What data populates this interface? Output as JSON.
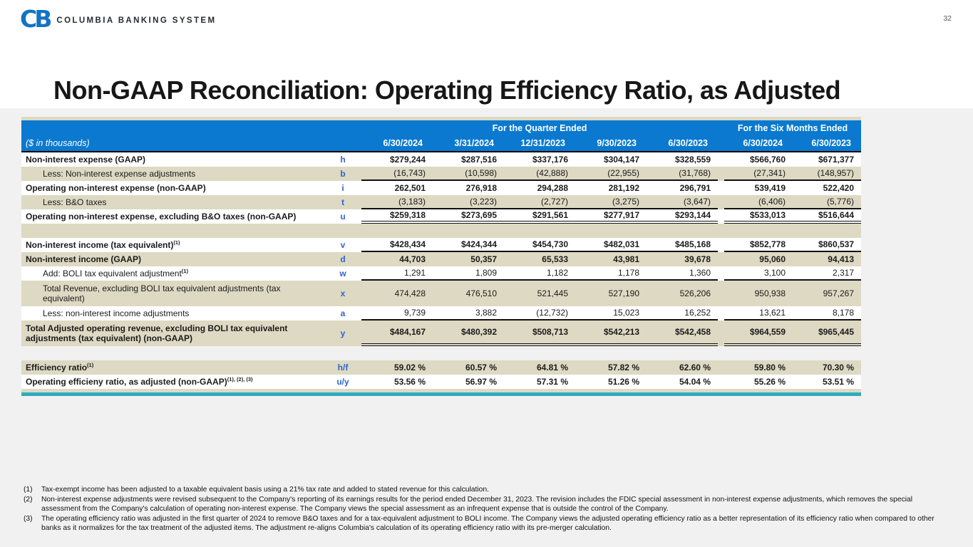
{
  "page_number": "32",
  "brand": {
    "monogram": "CB",
    "name": "COLUMBIA BANKING SYSTEM"
  },
  "title": "Non-GAAP Reconciliation: Operating Efficiency Ratio, as Adjusted",
  "colors": {
    "header_blue": "#0a79cf",
    "row_shade_tan": "#ddd9c3",
    "accent_teal": "#2faabe",
    "code_blue": "#2f65d0",
    "brand_blue": "#1473c2",
    "background_gray": "#f1f1f2"
  },
  "table": {
    "top_left_note": "($ in thousands)",
    "group_headers": [
      {
        "label": "For the Quarter Ended",
        "span": 5
      },
      {
        "label": "For the Six Months Ended",
        "span": 2
      }
    ],
    "columns": [
      "6/30/2024",
      "3/31/2024",
      "12/31/2023",
      "9/30/2023",
      "6/30/2023",
      "6/30/2024",
      "6/30/2023"
    ],
    "rows": [
      {
        "label": "Non-interest expense (GAAP)",
        "sup": "",
        "code": "h",
        "bold": true,
        "indent": false,
        "shaded": false,
        "border": "",
        "tall": false,
        "values": [
          "$279,244",
          "$287,516",
          "$337,176",
          "$304,147",
          "$328,559",
          "$566,760",
          "$671,377"
        ]
      },
      {
        "label": "Less: Non-interest expense adjustments",
        "sup": "",
        "code": "b",
        "bold": false,
        "indent": true,
        "shaded": true,
        "border": "single",
        "tall": false,
        "values": [
          "(16,743)",
          "(10,598)",
          "(42,888)",
          "(22,955)",
          "(31,768)",
          "(27,341)",
          "(148,957)"
        ]
      },
      {
        "label": "Operating non-interest expense (non-GAAP)",
        "sup": "",
        "code": "i",
        "bold": true,
        "indent": false,
        "shaded": false,
        "border": "",
        "tall": false,
        "values": [
          "262,501",
          "276,918",
          "294,288",
          "281,192",
          "296,791",
          "539,419",
          "522,420"
        ]
      },
      {
        "label": "Less: B&O taxes",
        "sup": "",
        "code": "t",
        "bold": false,
        "indent": true,
        "shaded": true,
        "border": "single",
        "tall": false,
        "values": [
          "(3,183)",
          "(3,223)",
          "(2,727)",
          "(3,275)",
          "(3,647)",
          "(6,406)",
          "(5,776)"
        ]
      },
      {
        "label": "Operating non-interest expense, excluding B&O taxes (non-GAAP)",
        "sup": "",
        "code": "u",
        "bold": true,
        "indent": false,
        "shaded": false,
        "border": "double",
        "tall": false,
        "values": [
          "$259,318",
          "$273,695",
          "$291,561",
          "$277,917",
          "$293,144",
          "$533,013",
          "$516,644"
        ]
      },
      {
        "type": "spacer",
        "shaded": true
      },
      {
        "label": "Non-interest income (tax equivalent)",
        "sup": "(1)",
        "code": "v",
        "bold": true,
        "indent": false,
        "shaded": false,
        "border": "single",
        "tall": false,
        "values": [
          "$428,434",
          "$424,344",
          "$454,730",
          "$482,031",
          "$485,168",
          "$852,778",
          "$860,537"
        ]
      },
      {
        "label": "Non-interest income (GAAP)",
        "sup": "",
        "code": "d",
        "bold": true,
        "indent": false,
        "shaded": true,
        "border": "",
        "tall": false,
        "values": [
          "44,703",
          "50,357",
          "65,533",
          "43,981",
          "39,678",
          "95,060",
          "94,413"
        ]
      },
      {
        "label": "Add: BOLI tax equivalent adjustment",
        "sup": "(1)",
        "code": "w",
        "bold": false,
        "indent": true,
        "shaded": false,
        "border": "single",
        "tall": false,
        "values": [
          "1,291",
          "1,809",
          "1,182",
          "1,178",
          "1,360",
          "3,100",
          "2,317"
        ]
      },
      {
        "label": "Total Revenue, excluding BOLI tax equivalent adjustments (tax equivalent)",
        "sup": "",
        "code": "x",
        "bold": false,
        "indent": true,
        "shaded": true,
        "border": "",
        "tall": true,
        "values": [
          "474,428",
          "476,510",
          "521,445",
          "527,190",
          "526,206",
          "950,938",
          "957,267"
        ]
      },
      {
        "label": "Less: non-interest income adjustments",
        "sup": "",
        "code": "a",
        "bold": false,
        "indent": true,
        "shaded": false,
        "border": "single",
        "tall": false,
        "values": [
          "9,739",
          "3,882",
          "(12,732)",
          "15,023",
          "16,252",
          "13,621",
          "8,178"
        ]
      },
      {
        "label": "Total Adjusted operating revenue, excluding BOLI tax equivalent adjustments (tax equivalent) (non-GAAP)",
        "sup": "",
        "code": "y",
        "bold": true,
        "indent": false,
        "shaded": true,
        "border": "double",
        "tall": true,
        "values": [
          "$484,167",
          "$480,392",
          "$508,713",
          "$542,213",
          "$542,458",
          "$964,559",
          "$965,445"
        ]
      },
      {
        "type": "spacer",
        "shaded": false,
        "thin": false
      },
      {
        "label": "Efficiency ratio",
        "sup": "(1)",
        "code": "h/f",
        "bold": true,
        "indent": false,
        "shaded": true,
        "border": "",
        "tall": false,
        "values": [
          "59.02 %",
          "60.57 %",
          "64.81 %",
          "57.82 %",
          "62.60 %",
          "59.80 %",
          "70.30 %"
        ]
      },
      {
        "label": "Operating efficieny ratio, as adjusted (non-GAAP)",
        "sup": "(1), (2), (3)",
        "code": "u/y",
        "bold": true,
        "indent": false,
        "shaded": false,
        "border": "",
        "tall": false,
        "values": [
          "53.56 %",
          "56.97 %",
          "57.31 %",
          "51.26 %",
          "54.04 %",
          "55.26 %",
          "53.51 %"
        ]
      }
    ]
  },
  "footnotes": [
    {
      "num": "(1)",
      "text": "Tax-exempt income has been adjusted to a taxable equivalent basis using a 21% tax rate and added to stated revenue for this calculation."
    },
    {
      "num": "(2)",
      "text": "Non-interest expense adjustments were revised subsequent to the Company's reporting of its earnings results for the period ended December 31, 2023. The revision includes the FDIC special assessment in non-interest expense adjustments, which removes the special assessment from the Company's calculation of operating non-interest expense. The Company views the special assessment as an infrequent expense that is outside the control of the Company."
    },
    {
      "num": "(3)",
      "text": "The operating efficiency ratio was adjusted in the first quarter of 2024 to remove B&O taxes and for a tax-equivalent adjustment to BOLI income. The Company views the adjusted operating efficiency ratio as a better representation of its efficiency ratio when compared to other banks as it normalizes for the tax treatment of the adjusted items. The adjustment re-aligns Columbia's calculation of its operating efficiency ratio with its pre-merger calculation."
    }
  ]
}
